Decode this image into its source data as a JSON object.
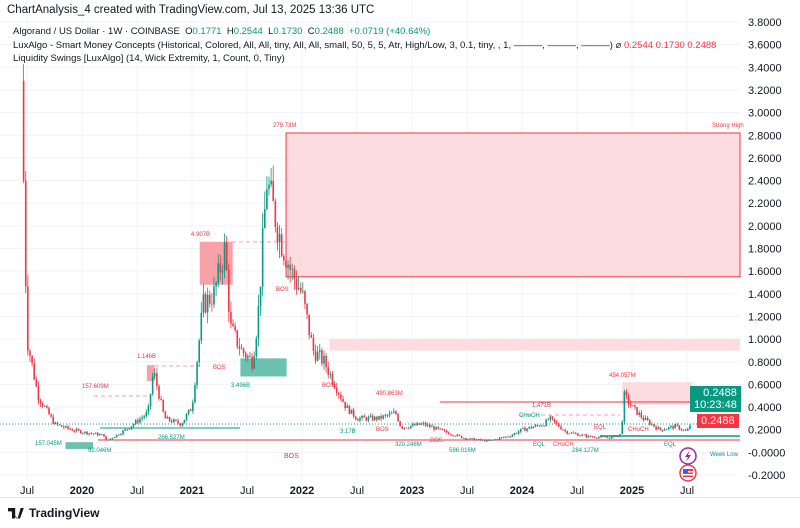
{
  "header": {
    "title": "ChartAnalysis_4 created with TradingView.com, Jul 13, 2025 13:36 UTC"
  },
  "legend": {
    "symbol": "Algorand / US Dollar · 1W · COINBASE",
    "o_label": "O",
    "o": "0.1771",
    "h_label": "H",
    "h": "0.2544",
    "l_label": "L",
    "l": "0.1730",
    "c_label": "C",
    "c": "0.2488",
    "change": "+0.0719 (+40.64%)",
    "ind1": "LuxAlgo - Smart Money Concepts (Historical, Colored, All, All, tiny, All, All, small, 50, 5, 5, Atr, High/Low, 3, 0.1, tiny, , 1, ———, ———, ———)",
    "ind1_icon": "⌀",
    "ind1_values": [
      "0.2544",
      "0.1730",
      "0.2488"
    ],
    "ind2": "Liquidity Swings [LuxAlgo] (14, Wick Extremity, 1, Count, 0, Tiny)"
  },
  "price_badges": {
    "last": "0.2488",
    "countdown": "10:23:48",
    "close": "0.2488"
  },
  "footer": {
    "brand": "TradingView"
  },
  "colors": {
    "up": "#089981",
    "down": "#f23645",
    "zone": "#fcdcdf"
  },
  "chart_data": {
    "type": "candlestick",
    "title": "Algorand / US Dollar · 1W · COINBASE",
    "ylim": [
      -0.2,
      3.8
    ],
    "y_ticks": [
      "3.8000",
      "3.6000",
      "3.4000",
      "3.2000",
      "3.0000",
      "2.8000",
      "2.6000",
      "2.4000",
      "2.2000",
      "2.0000",
      "1.8000",
      "1.6000",
      "1.4000",
      "1.2000",
      "1.0000",
      "0.8000",
      "0.6000",
      "0.4000",
      "0.2000",
      "-0.0000",
      "-0.2000"
    ],
    "x_ticks": [
      {
        "label": "Jul",
        "t": 2019.5
      },
      {
        "label": "2020",
        "t": 2020
      },
      {
        "label": "Jul",
        "t": 2020.5
      },
      {
        "label": "2021",
        "t": 2021
      },
      {
        "label": "Jul",
        "t": 2021.5
      },
      {
        "label": "2022",
        "t": 2022
      },
      {
        "label": "Jul",
        "t": 2022.5
      },
      {
        "label": "2023",
        "t": 2023
      },
      {
        "label": "Jul",
        "t": 2023.5
      },
      {
        "label": "2024",
        "t": 2024
      },
      {
        "label": "Jul",
        "t": 2024.5
      },
      {
        "label": "2025",
        "t": 2025
      },
      {
        "label": "Jul",
        "t": 2025.5
      }
    ],
    "price_path": [
      [
        2019.45,
        3.28
      ],
      [
        2019.5,
        1.0
      ],
      [
        2019.6,
        0.5
      ],
      [
        2019.75,
        0.25
      ],
      [
        2019.9,
        0.2
      ],
      [
        2020.0,
        0.18
      ],
      [
        2020.2,
        0.15
      ],
      [
        2020.22,
        0.1
      ],
      [
        2020.4,
        0.2
      ],
      [
        2020.6,
        0.35
      ],
      [
        2020.65,
        0.72
      ],
      [
        2020.75,
        0.3
      ],
      [
        2020.9,
        0.25
      ],
      [
        2021.0,
        0.4
      ],
      [
        2021.1,
        1.3
      ],
      [
        2021.2,
        1.4
      ],
      [
        2021.3,
        1.8
      ],
      [
        2021.35,
        1.1
      ],
      [
        2021.45,
        0.9
      ],
      [
        2021.55,
        0.8
      ],
      [
        2021.6,
        1.2
      ],
      [
        2021.68,
        2.4
      ],
      [
        2021.8,
        1.9
      ],
      [
        2021.9,
        1.6
      ],
      [
        2022.0,
        1.4
      ],
      [
        2022.1,
        0.9
      ],
      [
        2022.2,
        0.8
      ],
      [
        2022.3,
        0.6
      ],
      [
        2022.4,
        0.4
      ],
      [
        2022.5,
        0.3
      ],
      [
        2022.7,
        0.3
      ],
      [
        2022.85,
        0.35
      ],
      [
        2022.9,
        0.22
      ],
      [
        2023.1,
        0.25
      ],
      [
        2023.3,
        0.18
      ],
      [
        2023.5,
        0.12
      ],
      [
        2023.7,
        0.1
      ],
      [
        2023.9,
        0.15
      ],
      [
        2024.0,
        0.2
      ],
      [
        2024.2,
        0.25
      ],
      [
        2024.25,
        0.3
      ],
      [
        2024.4,
        0.18
      ],
      [
        2024.6,
        0.14
      ],
      [
        2024.8,
        0.13
      ],
      [
        2024.9,
        0.16
      ],
      [
        2024.93,
        0.5
      ],
      [
        2025.0,
        0.4
      ],
      [
        2025.1,
        0.3
      ],
      [
        2025.25,
        0.2
      ],
      [
        2025.4,
        0.23
      ],
      [
        2025.5,
        0.18
      ],
      [
        2025.53,
        0.2488
      ]
    ],
    "zones": [
      {
        "kind": "supply",
        "t0": 2021.855,
        "t1": 2027,
        "lo": 1.55,
        "hi": 2.82
      },
      {
        "kind": "supply",
        "t0": 2022.25,
        "t1": 2027,
        "lo": 0.9,
        "hi": 1.0
      },
      {
        "kind": "supply",
        "t0": 2024.91,
        "t1": 2025.55,
        "lo": 0.42,
        "hi": 0.62
      },
      {
        "kind": "supply",
        "t0": 2025.55,
        "t1": 2027,
        "lo": 0.35,
        "hi": 0.5
      },
      {
        "kind": "ob_bear",
        "t0": 2021.07,
        "t1": 2021.37,
        "lo": 1.48,
        "hi": 1.86
      },
      {
        "kind": "ob_bear",
        "t0": 2020.59,
        "t1": 2020.66,
        "lo": 0.63,
        "hi": 0.77
      },
      {
        "kind": "ob_bull",
        "t0": 2021.44,
        "t1": 2021.86,
        "lo": 0.67,
        "hi": 0.83
      },
      {
        "kind": "ob_bull",
        "t0": 2019.85,
        "t1": 2020.1,
        "lo": 0.03,
        "hi": 0.09
      }
    ],
    "annotations": [
      "Strong High",
      "279.73M",
      "4.907B",
      "1.146B",
      "157.609M",
      "157.045M",
      "92.046M",
      "266.527M",
      "3.496B",
      "BOS",
      "BOS",
      "BOS",
      "BOS",
      "BOS",
      "BOS",
      "490.863M",
      "3.17B",
      "320.248M",
      "1.471B",
      "CHoCH",
      "CHoCH",
      "CHoCH",
      "EQL",
      "EQL",
      "EQL",
      "596.016M",
      "284.127M",
      "454.057M",
      "Week Low"
    ]
  }
}
